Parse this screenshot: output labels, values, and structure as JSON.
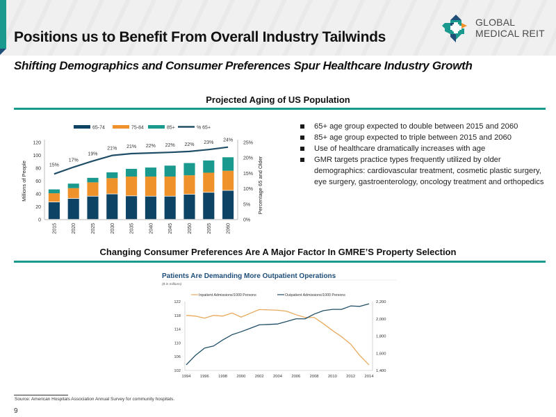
{
  "header": {
    "title": "Positions us to Benefit From Overall Industry Tailwinds",
    "subtitle": "Shifting Demographics and Consumer Preferences Spur Healthcare Industry Growth",
    "logo": {
      "icon": "cross-logo-icon",
      "line1": "GLOBAL",
      "line2": "MEDICAL REIT"
    }
  },
  "colors": {
    "teal": "#1a9a8e",
    "navy": "#0d4466",
    "orange": "#f0922b",
    "line_orange": "#e8a95a",
    "line_navy": "#1f4e66"
  },
  "section1": {
    "title": "Projected Aging of US Population"
  },
  "section2": {
    "title": "Changing Consumer Preferences Are A Major Factor In GMRE’S Property Selection"
  },
  "bullets": [
    "65+ age group expected to double between 2015 and 2060",
    "85+ age group expected to triple between 2015 and 2060",
    "Use of healthcare dramatically increases with age",
    "GMR targets practice types frequently utilized by older demographics: cardiovascular treatment, cosmetic plastic surgery, eye surgery, gastroenterology, oncology treatment and orthopedics"
  ],
  "footer": {
    "source": "Source: American Hospitals Association Annual Survey for community hospitals.",
    "page": "9"
  },
  "chart_data": [
    {
      "type": "bar",
      "stacked": true,
      "title": "Projected Aging of US Population",
      "categories": [
        "2015",
        "2020",
        "2025",
        "2030",
        "2035",
        "2040",
        "2045",
        "2050",
        "2055",
        "2060"
      ],
      "series": [
        {
          "name": "65-74",
          "values": [
            27,
            32.5,
            36,
            39.5,
            36.5,
            36,
            36,
            39,
            42,
            45
          ]
        },
        {
          "name": "75-84",
          "values": [
            14,
            16.5,
            22,
            25,
            30.5,
            31,
            31,
            30,
            31,
            31
          ]
        },
        {
          "name": "85+",
          "values": [
            6,
            7,
            7,
            9,
            12,
            14,
            17,
            19,
            19,
            21
          ]
        }
      ],
      "line_series": {
        "name": "% 65+",
        "axis": "right",
        "values": [
          15,
          17,
          19,
          21,
          21,
          22,
          22,
          22,
          23,
          24
        ],
        "plotted_values": [
          14.8,
          17.0,
          19.0,
          20.8,
          21.4,
          21.6,
          21.8,
          22.1,
          22.7,
          23.5
        ],
        "labels": [
          "15%",
          "17%",
          "19%",
          "21%",
          "21%",
          "22%",
          "22%",
          "22%",
          "23%",
          "24%"
        ]
      },
      "ylabel": "Millions of People",
      "ylim": [
        0,
        120
      ],
      "yticks": [
        "0",
        "20",
        "40",
        "60",
        "80",
        "100",
        "120"
      ],
      "y2label": "Percentage 65 and Older",
      "y2lim": [
        0,
        25
      ],
      "y2ticks": [
        "0%",
        "5%",
        "10%",
        "15%",
        "20%",
        "25%"
      ],
      "legend": [
        "65-74",
        "75-84",
        "85+",
        "% 65+"
      ],
      "legend_position": "top",
      "grid": false
    },
    {
      "type": "line",
      "title": "Patients Are Demanding More Outpatient Operations",
      "subtitle": "($ in millions)",
      "x": [
        1994,
        1995,
        1996,
        1997,
        1998,
        1999,
        2000,
        2001,
        2002,
        2003,
        2004,
        2005,
        2006,
        2007,
        2008,
        2009,
        2010,
        2011,
        2012,
        2013,
        2014
      ],
      "xticks": [
        "1994",
        "1996",
        "1998",
        "2000",
        "2002",
        "2004",
        "2006",
        "2008",
        "2010",
        "2012",
        "2014"
      ],
      "series": [
        {
          "name": "Inpatient Admissions/1000 Persons",
          "axis": "left",
          "values": [
            118.0,
            117.8,
            117.2,
            118.0,
            117.8,
            118.7,
            117.5,
            118.6,
            119.7,
            119.6,
            119.5,
            119.2,
            118.2,
            117.4,
            117.4,
            115.6,
            113.6,
            111.8,
            109.6,
            106.3,
            103.6
          ]
        },
        {
          "name": "Outpatient Admissions/1000 Persons",
          "axis": "right",
          "values": [
            1465,
            1575,
            1660,
            1685,
            1755,
            1815,
            1850,
            1890,
            1930,
            1935,
            1940,
            1970,
            2000,
            2000,
            2055,
            2095,
            2110,
            2110,
            2150,
            2145,
            2175
          ]
        }
      ],
      "ylim": [
        102,
        122
      ],
      "yticks": [
        "102",
        "106",
        "110",
        "114",
        "118",
        "122"
      ],
      "y2lim": [
        1400,
        2200
      ],
      "y2ticks": [
        "1,400",
        "1,600",
        "1,800",
        "2,000",
        "2,200"
      ],
      "legend_position": "top",
      "grid": false
    }
  ]
}
